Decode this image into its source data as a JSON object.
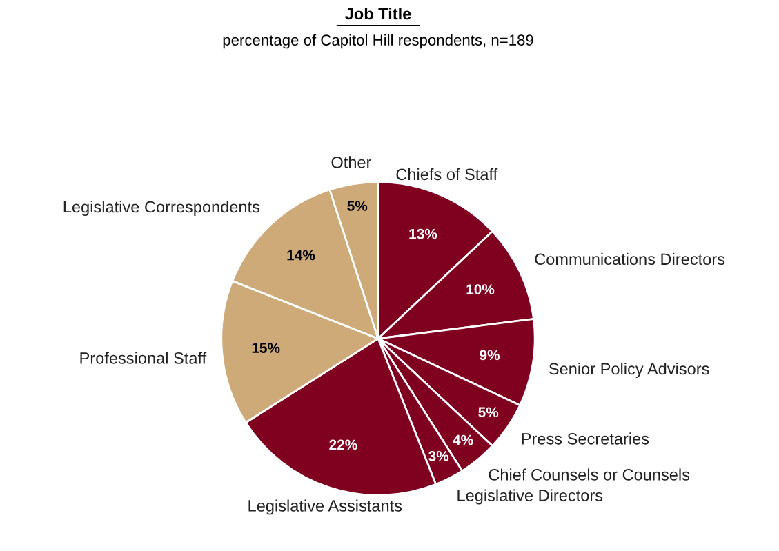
{
  "chart_data": {
    "type": "pie",
    "title": "Job Title",
    "subtitle": "percentage of Capitol Hill respondents, n=189",
    "categories": [
      "Chiefs of Staff",
      "Communications Directors",
      "Senior Policy Advisors",
      "Press Secretaries",
      "Chief Counsels or Counsels",
      "Legislative Directors",
      "Legislative Assistants",
      "Professional Staff",
      "Legislative Correspondents",
      "Other"
    ],
    "values": [
      13,
      10,
      9,
      5,
      4,
      3,
      22,
      15,
      14,
      5
    ],
    "value_labels": [
      "13%",
      "10%",
      "9%",
      "5%",
      "4%",
      "3%",
      "22%",
      "15%",
      "14%",
      "5%"
    ],
    "colors": [
      "#800020",
      "#800020",
      "#800020",
      "#800020",
      "#800020",
      "#800020",
      "#800020",
      "#cfaa79",
      "#cfaa79",
      "#cfaa79"
    ],
    "legend": false
  }
}
